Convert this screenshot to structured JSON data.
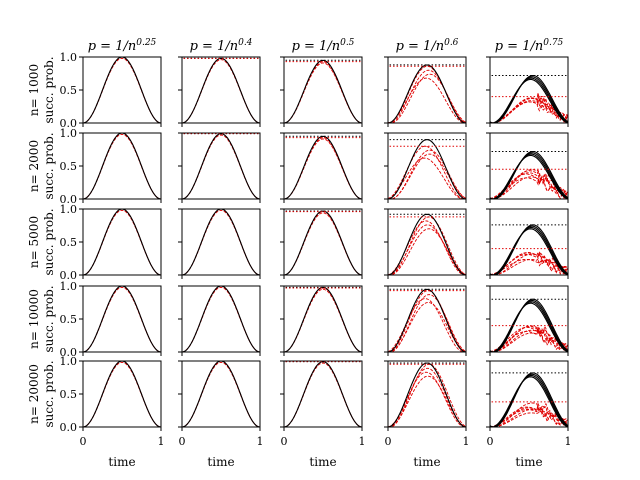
{
  "chart_data": {
    "type": "line",
    "layout": "grid 5x5 small multiples",
    "column_titles": [
      "p = 1/n^0.25",
      "p = 1/n^0.4",
      "p = 1/n^0.5",
      "p = 1/n^0.6",
      "p = 1/n^0.75"
    ],
    "column_title_parts": [
      {
        "base": "p = 1/n",
        "exp": "0.25"
      },
      {
        "base": "p = 1/n",
        "exp": "0.4"
      },
      {
        "base": "p = 1/n",
        "exp": "0.5"
      },
      {
        "base": "p = 1/n",
        "exp": "0.6"
      },
      {
        "base": "p = 1/n",
        "exp": "0.75"
      }
    ],
    "row_labels": [
      "n= 1000",
      "n= 2000",
      "n= 5000",
      "n= 10000",
      "n= 20000"
    ],
    "ylabel": "succ. prob.",
    "xlabel": "time",
    "xlim": [
      0,
      1
    ],
    "ylim": [
      0,
      1
    ],
    "xticks": [
      "0",
      "1"
    ],
    "yticks": [
      "0.0",
      "0.5",
      "1.0"
    ],
    "grid": false,
    "series_colors": {
      "black": "#000000",
      "red": "#e00000"
    },
    "peak_estimates": [
      [
        {
          "black": 1.0,
          "red": 1.0
        },
        {
          "black": 0.98,
          "red": 0.98
        },
        {
          "black": 0.95,
          "red": 0.93
        },
        {
          "black": 0.88,
          "red": 0.86
        },
        {
          "black": 0.72,
          "red": 0.4
        }
      ],
      [
        {
          "black": 1.0,
          "red": 1.0
        },
        {
          "black": 0.99,
          "red": 0.99
        },
        {
          "black": 0.95,
          "red": 0.93
        },
        {
          "black": 0.9,
          "red": 0.8
        },
        {
          "black": 0.72,
          "red": 0.45
        }
      ],
      [
        {
          "black": 1.0,
          "red": 1.0
        },
        {
          "black": 1.0,
          "red": 1.0
        },
        {
          "black": 0.97,
          "red": 0.96
        },
        {
          "black": 0.92,
          "red": 0.88
        },
        {
          "black": 0.76,
          "red": 0.4
        }
      ],
      [
        {
          "black": 1.0,
          "red": 1.0
        },
        {
          "black": 1.0,
          "red": 1.0
        },
        {
          "black": 0.98,
          "red": 0.97
        },
        {
          "black": 0.95,
          "red": 0.93
        },
        {
          "black": 0.8,
          "red": 0.4
        }
      ],
      [
        {
          "black": 1.0,
          "red": 1.0
        },
        {
          "black": 1.0,
          "red": 1.0
        },
        {
          "black": 0.99,
          "red": 0.99
        },
        {
          "black": 0.97,
          "red": 0.95
        },
        {
          "black": 0.82,
          "red": 0.38
        }
      ]
    ]
  }
}
